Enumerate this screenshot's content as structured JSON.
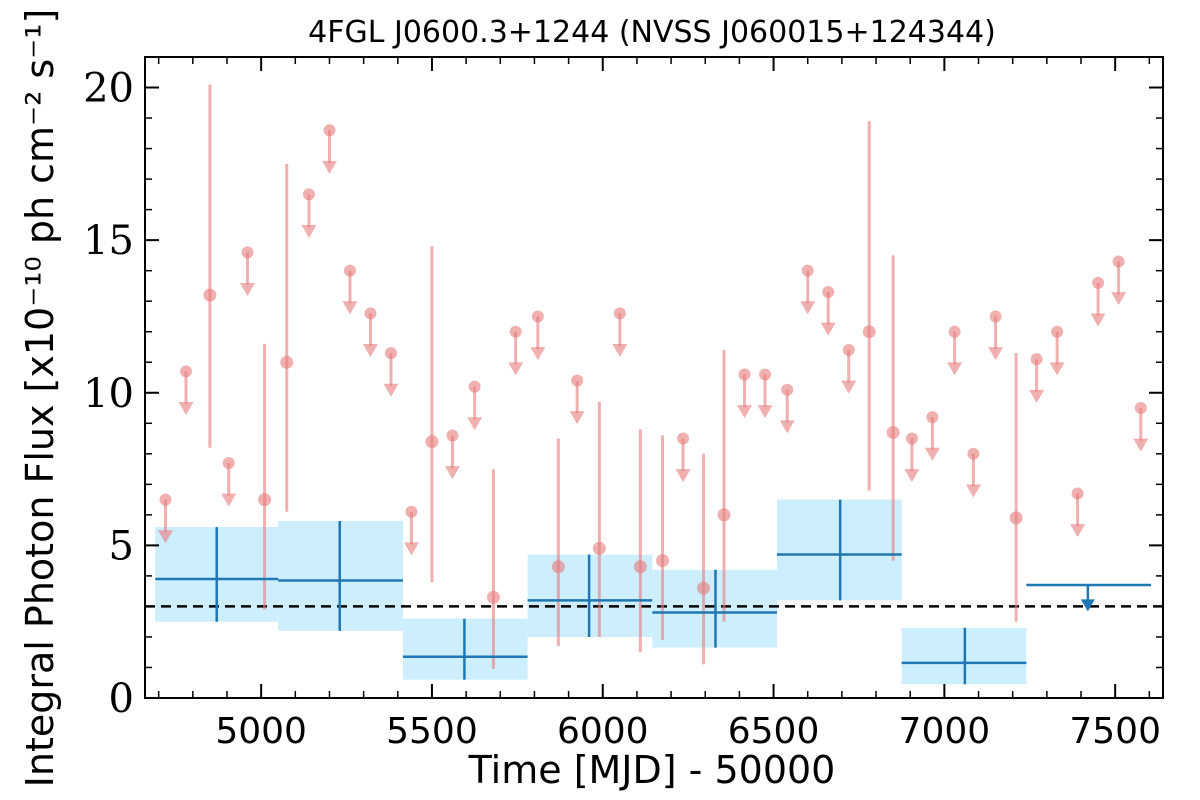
{
  "chart_data": {
    "type": "scatter",
    "title": "4FGL J0600.3+1244 (NVSS J060015+124344)",
    "xlabel": "Time [MJD] - 50000",
    "ylabel": "Integral Photon Flux [x10⁻¹⁰ ph cm⁻² s⁻¹]",
    "xlim": [
      4660,
      7640
    ],
    "ylim": [
      0,
      21
    ],
    "x_ticks": [
      5000,
      5500,
      6000,
      6500,
      7000,
      7500
    ],
    "y_ticks": [
      0,
      5,
      10,
      15,
      20
    ],
    "grid": false,
    "reference_line": {
      "y": 3.0,
      "style": "dashed",
      "color": "#000000"
    },
    "colors": {
      "short_bins": "#e77c7c",
      "long_bins": "#1f77b4",
      "long_bin_band": "#cdeefc"
    },
    "series": [
      {
        "points": [
          {
            "x": 4850,
            "y": 13.2,
            "ylo": 8.2,
            "yhi": 20.1
          },
          {
            "x": 5010,
            "y": 6.5,
            "ylo": 2.9,
            "yhi": 11.6
          },
          {
            "x": 5075,
            "y": 11.0,
            "ylo": 6.1,
            "yhi": 17.5
          },
          {
            "x": 5500,
            "y": 8.4,
            "ylo": 3.8,
            "yhi": 14.8
          },
          {
            "x": 5680,
            "y": 3.3,
            "ylo": 0.95,
            "yhi": 7.5
          },
          {
            "x": 5870,
            "y": 4.3,
            "ylo": 1.7,
            "yhi": 8.5
          },
          {
            "x": 5990,
            "y": 4.9,
            "ylo": 2.0,
            "yhi": 9.7
          },
          {
            "x": 6110,
            "y": 4.3,
            "ylo": 1.5,
            "yhi": 8.8
          },
          {
            "x": 6175,
            "y": 4.5,
            "ylo": 1.9,
            "yhi": 8.6
          },
          {
            "x": 6295,
            "y": 3.6,
            "ylo": 1.1,
            "yhi": 8.0
          },
          {
            "x": 6355,
            "y": 6.0,
            "ylo": 2.5,
            "yhi": 11.4
          },
          {
            "x": 6780,
            "y": 12.0,
            "ylo": 6.8,
            "yhi": 18.9
          },
          {
            "x": 6850,
            "y": 8.7,
            "ylo": 4.5,
            "yhi": 14.5
          },
          {
            "x": 7210,
            "y": 5.9,
            "ylo": 2.5,
            "yhi": 11.3
          }
        ],
        "upper_limits": [
          {
            "x": 4720,
            "y": 6.5
          },
          {
            "x": 4780,
            "y": 10.7
          },
          {
            "x": 4905,
            "y": 7.7
          },
          {
            "x": 4960,
            "y": 14.6
          },
          {
            "x": 5140,
            "y": 16.5
          },
          {
            "x": 5200,
            "y": 18.6
          },
          {
            "x": 5260,
            "y": 14.0
          },
          {
            "x": 5320,
            "y": 12.6
          },
          {
            "x": 5380,
            "y": 11.3
          },
          {
            "x": 5440,
            "y": 6.1
          },
          {
            "x": 5560,
            "y": 8.6
          },
          {
            "x": 5625,
            "y": 10.2
          },
          {
            "x": 5745,
            "y": 12.0
          },
          {
            "x": 5810,
            "y": 12.5
          },
          {
            "x": 5925,
            "y": 10.4
          },
          {
            "x": 6050,
            "y": 12.6
          },
          {
            "x": 6235,
            "y": 8.5
          },
          {
            "x": 6415,
            "y": 10.6
          },
          {
            "x": 6475,
            "y": 10.6
          },
          {
            "x": 6540,
            "y": 10.1
          },
          {
            "x": 6600,
            "y": 14.0
          },
          {
            "x": 6660,
            "y": 13.3
          },
          {
            "x": 6720,
            "y": 11.4
          },
          {
            "x": 6905,
            "y": 8.5
          },
          {
            "x": 6965,
            "y": 9.2
          },
          {
            "x": 7030,
            "y": 12.0
          },
          {
            "x": 7085,
            "y": 8.0
          },
          {
            "x": 7150,
            "y": 12.5
          },
          {
            "x": 7270,
            "y": 11.1
          },
          {
            "x": 7330,
            "y": 12.0
          },
          {
            "x": 7390,
            "y": 6.7
          },
          {
            "x": 7450,
            "y": 13.6
          },
          {
            "x": 7510,
            "y": 14.3
          },
          {
            "x": 7575,
            "y": 9.5
          }
        ]
      },
      {
        "bins": [
          {
            "x0": 4690,
            "x1": 5050,
            "xc": 4870,
            "y": 3.9,
            "ylo": 2.5,
            "yhi": 5.6
          },
          {
            "x0": 5050,
            "x1": 5415,
            "xc": 5230,
            "y": 3.85,
            "ylo": 2.2,
            "yhi": 5.8
          },
          {
            "x0": 5415,
            "x1": 5780,
            "xc": 5595,
            "y": 1.35,
            "ylo": 0.6,
            "yhi": 2.6
          },
          {
            "x0": 5780,
            "x1": 6145,
            "xc": 5960,
            "y": 3.2,
            "ylo": 2.0,
            "yhi": 4.7
          },
          {
            "x0": 6145,
            "x1": 6510,
            "xc": 6330,
            "y": 2.8,
            "ylo": 1.65,
            "yhi": 4.2
          },
          {
            "x0": 6510,
            "x1": 6875,
            "xc": 6695,
            "y": 4.7,
            "ylo": 3.2,
            "yhi": 6.5
          },
          {
            "x0": 6875,
            "x1": 7240,
            "xc": 7060,
            "y": 1.15,
            "ylo": 0.45,
            "yhi": 2.3
          }
        ],
        "upper_limits": [
          {
            "x0": 7240,
            "x1": 7605,
            "xc": 7420,
            "y": 3.7
          }
        ]
      }
    ]
  }
}
